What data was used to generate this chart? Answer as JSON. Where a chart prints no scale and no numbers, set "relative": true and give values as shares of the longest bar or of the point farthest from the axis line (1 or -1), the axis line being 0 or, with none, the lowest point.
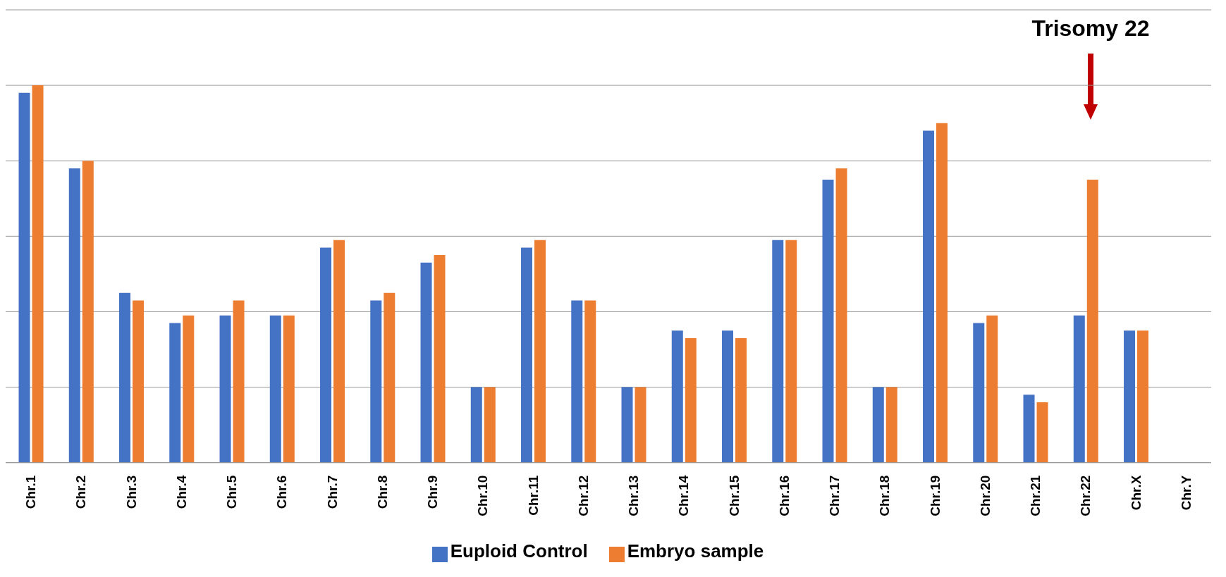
{
  "chart_data": {
    "type": "bar",
    "relative": true,
    "grid": "y",
    "legend": "bottom",
    "categories": [
      "Chr.1",
      "Chr.2",
      "Chr.3",
      "Chr.4",
      "Chr.5",
      "Chr.6",
      "Chr.7",
      "Chr.8",
      "Chr.9",
      "Chr.10",
      "Chr.11",
      "Chr.12",
      "Chr.13",
      "Chr.14",
      "Chr.15",
      "Chr.16",
      "Chr.17",
      "Chr.18",
      "Chr.19",
      "Chr.20",
      "Chr.21",
      "Chr.22",
      "Chr.X",
      "Chr.Y"
    ],
    "series": [
      {
        "name": "Euploid Control",
        "color": "#4472c4",
        "values": [
          0.98,
          0.78,
          0.45,
          0.37,
          0.39,
          0.39,
          0.57,
          0.43,
          0.53,
          0.2,
          0.57,
          0.43,
          0.2,
          0.35,
          0.35,
          0.59,
          0.75,
          0.2,
          0.88,
          0.37,
          0.18,
          0.39,
          0.35,
          null
        ]
      },
      {
        "name": "Embryo sample",
        "color": "#ed7d31",
        "values": [
          1,
          0.8,
          0.43,
          0.39,
          0.43,
          0.39,
          0.59,
          0.45,
          0.55,
          0.2,
          0.59,
          0.43,
          0.2,
          0.33,
          0.33,
          0.59,
          0.78,
          0.2,
          0.9,
          0.39,
          0.16,
          0.75,
          0.35,
          null
        ]
      }
    ],
    "annotations": [
      "Trisomy 22"
    ]
  }
}
